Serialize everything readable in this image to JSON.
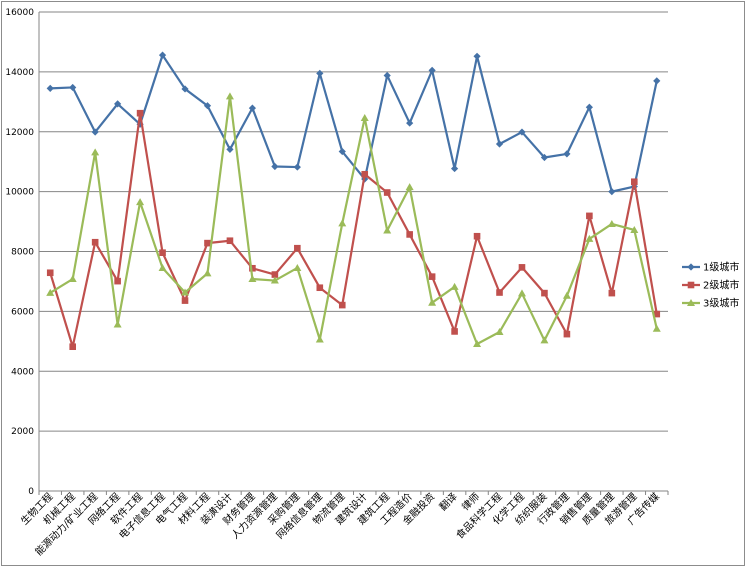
{
  "chart_data": {
    "type": "line",
    "title": "",
    "xlabel": "",
    "ylabel": "",
    "ylim": [
      0,
      16000
    ],
    "y_ticks": [
      0,
      2000,
      4000,
      6000,
      8000,
      10000,
      12000,
      14000,
      16000
    ],
    "grid": "horizontal",
    "legend_position": "right",
    "categories": [
      "生物工程",
      "机械工程",
      "能源动力/矿业工程",
      "网络工程",
      "软件工程",
      "电子信息工程",
      "电气工程",
      "材料工程",
      "装潢设计",
      "财务管理",
      "人力资源管理",
      "采购管理",
      "网络信息管理",
      "物流管理",
      "建筑设计",
      "建筑工程",
      "工程造价",
      "金融投资",
      "翻译",
      "律师",
      "食品科学工程",
      "化学工程",
      "纺织服装",
      "行政管理",
      "销售管理",
      "质量管理",
      "旅游管理",
      "广告传媒"
    ],
    "series": [
      {
        "name": "1级城市",
        "color": "#4572A7",
        "marker": "diamond",
        "values": [
          13450,
          13480,
          11990,
          12930,
          12250,
          14560,
          13430,
          12870,
          11410,
          12790,
          10840,
          10820,
          13950,
          11340,
          10420,
          13880,
          12290,
          14050,
          10770,
          14520,
          11590,
          11990,
          11140,
          11260,
          12820,
          10000,
          10170,
          13700
        ]
      },
      {
        "name": "2级城市",
        "color": "#C0504D",
        "marker": "square",
        "values": [
          7290,
          4820,
          8310,
          7010,
          12620,
          7960,
          6360,
          8280,
          8360,
          7440,
          7230,
          8110,
          6790,
          6210,
          10580,
          9970,
          8570,
          7160,
          5330,
          8510,
          6630,
          7470,
          6610,
          5240,
          9190,
          6610,
          10330,
          5910
        ]
      },
      {
        "name": "3级城市",
        "color": "#9BBB59",
        "marker": "triangle",
        "values": [
          6620,
          7080,
          11310,
          5560,
          9650,
          7450,
          6630,
          7270,
          13180,
          7080,
          7030,
          7450,
          5060,
          8940,
          12460,
          8700,
          10150,
          6290,
          6820,
          4910,
          5310,
          6600,
          5030,
          6520,
          8420,
          8920,
          8720,
          5420
        ]
      }
    ]
  }
}
